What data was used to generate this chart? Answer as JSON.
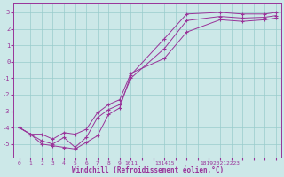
{
  "xlabel": "Windchill (Refroidissement éolien,°C)",
  "background_color": "#cce8e8",
  "grid_color": "#99cccc",
  "line_color": "#993399",
  "xlim": [
    -0.5,
    23.5
  ],
  "ylim": [
    -5.8,
    3.6
  ],
  "yticks": [
    -5,
    -4,
    -3,
    -2,
    -1,
    0,
    1,
    2,
    3
  ],
  "xtick_labels": [
    "0",
    "1",
    "2",
    "3",
    "4",
    "5",
    "6",
    "7",
    "8",
    "9",
    "1011",
    "",
    "131415",
    "",
    "",
    "181920212223",
    "",
    "",
    "",
    "",
    "",
    "",
    ""
  ],
  "xticks_pos": [
    0,
    1,
    2,
    3,
    4,
    5,
    6,
    7,
    8,
    9,
    10,
    11,
    12,
    13,
    14,
    15,
    16,
    17,
    18,
    19,
    20,
    21,
    22
  ],
  "line1_x": [
    0,
    1,
    2,
    3,
    4,
    5,
    6,
    7,
    8,
    9,
    10,
    13,
    15,
    18,
    20,
    22,
    23
  ],
  "line1_y": [
    -4.0,
    -4.4,
    -5.0,
    -5.1,
    -5.2,
    -5.3,
    -4.9,
    -4.5,
    -3.2,
    -2.8,
    -0.8,
    1.4,
    2.9,
    3.0,
    2.9,
    2.9,
    3.0
  ],
  "line2_x": [
    0,
    1,
    2,
    3,
    4,
    5,
    6,
    7,
    8,
    9,
    10,
    13,
    15,
    18,
    20,
    22,
    23
  ],
  "line2_y": [
    -4.0,
    -4.4,
    -4.8,
    -5.0,
    -4.6,
    -5.2,
    -4.6,
    -3.4,
    -2.9,
    -2.6,
    -1.0,
    0.8,
    2.5,
    2.75,
    2.65,
    2.7,
    2.8
  ],
  "line3_x": [
    0,
    1,
    2,
    3,
    4,
    5,
    6,
    7,
    8,
    9,
    10,
    13,
    15,
    18,
    20,
    22,
    23
  ],
  "line3_y": [
    -4.0,
    -4.4,
    -4.4,
    -4.7,
    -4.3,
    -4.4,
    -4.1,
    -3.1,
    -2.6,
    -2.3,
    -0.7,
    0.2,
    1.8,
    2.55,
    2.45,
    2.55,
    2.65
  ]
}
